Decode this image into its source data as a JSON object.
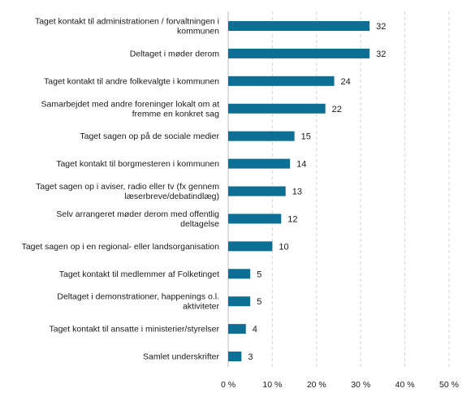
{
  "chart_data": {
    "type": "bar",
    "orientation": "horizontal",
    "title": "",
    "xlabel": "",
    "ylabel": "",
    "xlim": [
      0,
      50
    ],
    "grid": true,
    "bar_color": "#0e6f95",
    "x_ticks": [
      "0 %",
      "10 %",
      "20 %",
      "30 %",
      "40 %",
      "50 %"
    ],
    "categories": [
      [
        "Taget kontakt til administrationen / forvaltningen i",
        "kommunen"
      ],
      [
        "Deltaget i møder derom"
      ],
      [
        "Taget kontakt til andre folkevalgte i kommunen"
      ],
      [
        "Samarbejdet med andre foreninger lokalt om at",
        "fremme en konkret sag"
      ],
      [
        "Taget sagen op på de sociale medier"
      ],
      [
        "Taget kontakt til borgmesteren i kommunen"
      ],
      [
        "Taget sagen op i aviser, radio eller tv (fx gennem",
        "læserbreve/debatindlæg)"
      ],
      [
        "Selv arrangeret møder derom med offentlig",
        "deltagelse"
      ],
      [
        "Taget sagen op i en regional- eller landsorganisation"
      ],
      [
        "Taget kontakt til medlemmer af Folketinget"
      ],
      [
        "Deltaget i demonstrationer, happenings o.l.",
        "aktiviteter"
      ],
      [
        "Taget kontakt til ansatte i ministerier/styrelser"
      ],
      [
        "Samlet underskrifter"
      ]
    ],
    "values": [
      32,
      32,
      24,
      22,
      15,
      14,
      13,
      12,
      10,
      5,
      5,
      4,
      3
    ]
  }
}
